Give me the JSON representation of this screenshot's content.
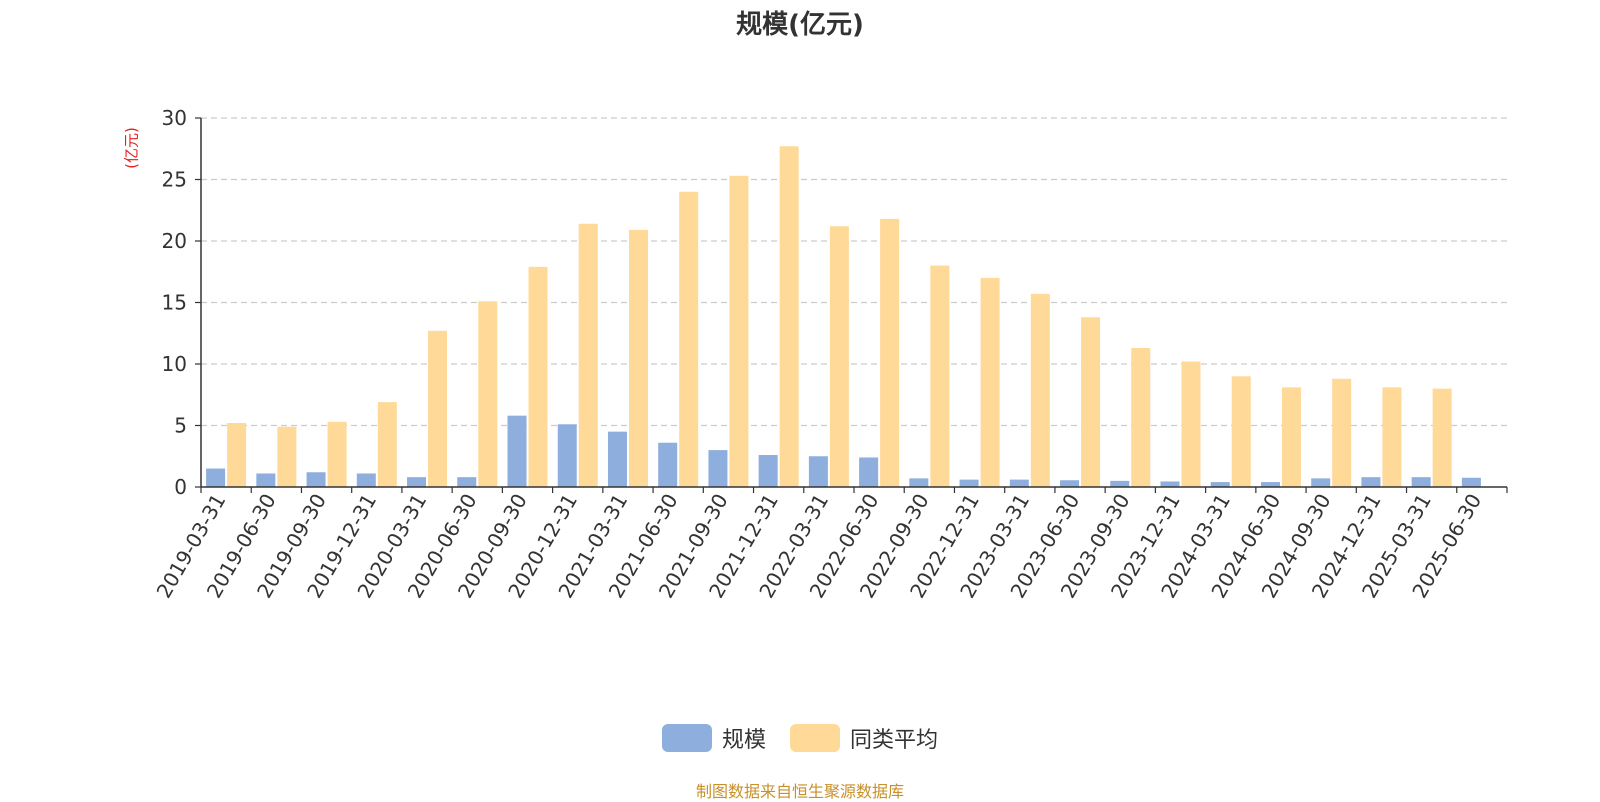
{
  "title": "规模(亿元)",
  "unit_label": "(亿元)",
  "footer": "制图数据来自恒生聚源数据库",
  "colors": {
    "series1": "#8eaede",
    "series2": "#ffd998",
    "axis": "#333333",
    "grid": "#cccccc"
  },
  "chart_data": {
    "type": "bar",
    "title": "规模(亿元)",
    "ylabel": "(亿元)",
    "xlabel": "",
    "ylim": [
      0,
      30
    ],
    "yticks": [
      0,
      5,
      10,
      15,
      20,
      25,
      30
    ],
    "grid": true,
    "legend_position": "bottom",
    "categories": [
      "2019-03-31",
      "2019-06-30",
      "2019-09-30",
      "2019-12-31",
      "2020-03-31",
      "2020-06-30",
      "2020-09-30",
      "2020-12-31",
      "2021-03-31",
      "2021-06-30",
      "2021-09-30",
      "2021-12-31",
      "2022-03-31",
      "2022-06-30",
      "2022-09-30",
      "2022-12-31",
      "2023-03-31",
      "2023-06-30",
      "2023-09-30",
      "2023-12-31",
      "2024-03-31",
      "2024-06-30",
      "2024-09-30",
      "2024-12-31",
      "2025-03-31",
      "2025-06-30"
    ],
    "series": [
      {
        "name": "规模",
        "color": "#8eaede",
        "values": [
          1.5,
          1.1,
          1.2,
          1.1,
          0.8,
          0.8,
          5.8,
          5.1,
          4.5,
          3.6,
          3.0,
          2.6,
          2.5,
          2.4,
          0.7,
          0.6,
          0.6,
          0.55,
          0.5,
          0.45,
          0.4,
          0.4,
          0.7,
          0.8,
          0.8,
          0.75
        ]
      },
      {
        "name": "同类平均",
        "color": "#ffd998",
        "values": [
          5.2,
          4.9,
          5.3,
          6.9,
          12.7,
          15.1,
          17.9,
          21.4,
          20.9,
          24.0,
          25.3,
          27.7,
          21.2,
          21.8,
          18.0,
          17.0,
          15.7,
          13.8,
          11.3,
          10.2,
          9.0,
          8.1,
          8.8,
          8.1,
          8.0,
          null
        ]
      }
    ]
  }
}
